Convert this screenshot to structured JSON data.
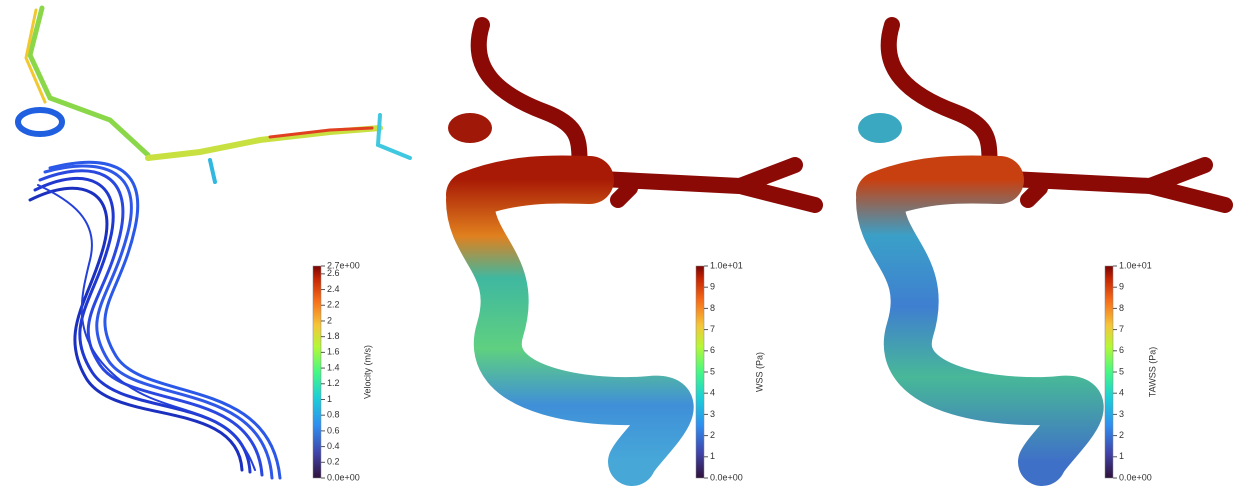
{
  "panels": [
    {
      "colorbar": {
        "title": "Velocity (m/s)",
        "range": [
          0,
          2.7
        ],
        "ticks": [
          {
            "value": 2.7,
            "label": "2.7e+00"
          },
          2.6,
          2.4,
          2.2,
          2,
          1.8,
          1.6,
          1.4,
          1.2,
          1,
          0.8,
          0.6,
          0.4,
          0.2,
          {
            "value": 0,
            "label": "0.0e+00"
          }
        ]
      }
    },
    {
      "colorbar": {
        "title": "WSS (Pa)",
        "range": [
          0,
          10
        ],
        "ticks": [
          {
            "value": 10,
            "label": "1.0e+01"
          },
          9,
          8,
          7,
          6,
          5,
          4,
          3,
          2,
          1,
          {
            "value": 0,
            "label": "0.0e+00"
          }
        ]
      }
    },
    {
      "colorbar": {
        "title": "TAWSS (Pa)",
        "range": [
          0,
          10
        ],
        "ticks": [
          {
            "value": 10,
            "label": "1.0e+01"
          },
          9,
          8,
          7,
          6,
          5,
          4,
          3,
          2,
          1,
          {
            "value": 0,
            "label": "0.0e+00"
          }
        ]
      }
    }
  ]
}
